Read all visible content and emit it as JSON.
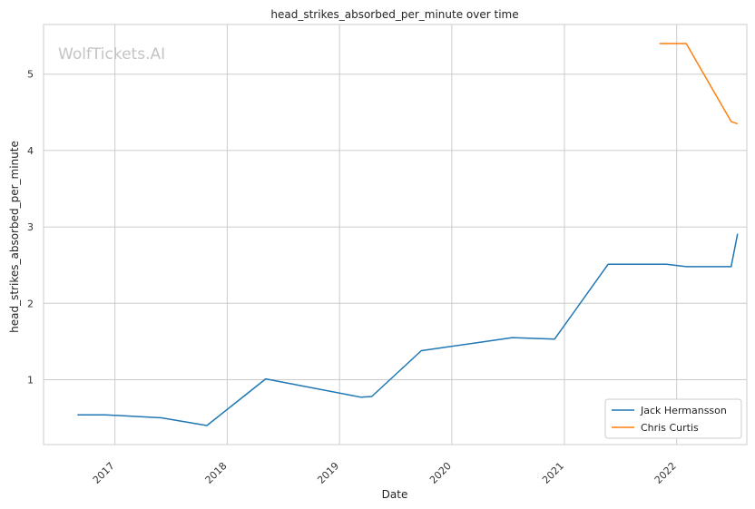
{
  "chart_data": {
    "type": "line",
    "title": "head_strikes_absorbed_per_minute over time",
    "xlabel": "Date",
    "ylabel": "head_strikes_absorbed_per_minute",
    "watermark": "WolfTickets.AI",
    "x_ticks": [
      "2017",
      "2018",
      "2019",
      "2020",
      "2021",
      "2022"
    ],
    "y_ticks": [
      "1",
      "2",
      "3",
      "4",
      "5"
    ],
    "xlim": [
      "2016-05-14",
      "2022-08-17"
    ],
    "ylim": [
      0.15,
      5.65
    ],
    "grid": true,
    "legend_position": "bottom-right",
    "series": [
      {
        "name": "Jack Hermansson",
        "color": "#1f77b4",
        "points": [
          {
            "x": "2016-09-01",
            "y": 0.54
          },
          {
            "x": "2016-12-01",
            "y": 0.54
          },
          {
            "x": "2017-06-01",
            "y": 0.5
          },
          {
            "x": "2017-10-27",
            "y": 0.4
          },
          {
            "x": "2018-05-06",
            "y": 1.01
          },
          {
            "x": "2019-03-12",
            "y": 0.77
          },
          {
            "x": "2019-04-16",
            "y": 0.78
          },
          {
            "x": "2019-09-24",
            "y": 1.38
          },
          {
            "x": "2020-07-16",
            "y": 1.55
          },
          {
            "x": "2020-11-30",
            "y": 1.53
          },
          {
            "x": "2021-05-23",
            "y": 2.51
          },
          {
            "x": "2021-11-29",
            "y": 2.51
          },
          {
            "x": "2022-02-01",
            "y": 2.48
          },
          {
            "x": "2022-06-27",
            "y": 2.48
          },
          {
            "x": "2022-07-18",
            "y": 2.91
          }
        ]
      },
      {
        "name": "Chris Curtis",
        "color": "#ff7f0e",
        "points": [
          {
            "x": "2021-11-06",
            "y": 5.4
          },
          {
            "x": "2022-02-01",
            "y": 5.4
          },
          {
            "x": "2022-06-27",
            "y": 4.38
          },
          {
            "x": "2022-07-18",
            "y": 4.35
          }
        ]
      }
    ]
  }
}
